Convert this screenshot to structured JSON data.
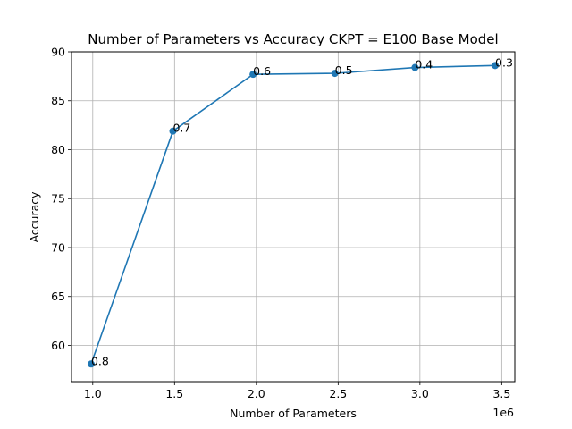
{
  "chart_data": {
    "type": "line",
    "title": "Number of Parameters vs Accuracy CKPT = E100 Base Model",
    "xlabel": "Number of Parameters",
    "ylabel": "Accuracy",
    "x_offset_label": "1e6",
    "xlim": [
      0.87,
      3.58
    ],
    "ylim": [
      56.3,
      90.0
    ],
    "xticks": [
      1.0,
      1.5,
      2.0,
      2.5,
      3.0,
      3.5
    ],
    "xtick_labels": [
      "1.0",
      "1.5",
      "2.0",
      "2.5",
      "3.0",
      "3.5"
    ],
    "yticks": [
      60,
      65,
      70,
      75,
      80,
      85,
      90
    ],
    "ytick_labels": [
      "60",
      "65",
      "70",
      "75",
      "80",
      "85",
      "90"
    ],
    "grid": true,
    "series": [
      {
        "color": "#1f77b4",
        "x": [
          0.99,
          1.49,
          1.98,
          2.48,
          2.97,
          3.46
        ],
        "y": [
          58.1,
          81.9,
          87.7,
          87.8,
          88.4,
          88.6
        ],
        "labels": [
          "0.8",
          "0.7",
          "0.6",
          "0.5",
          "0.4",
          "0.3"
        ]
      }
    ]
  }
}
